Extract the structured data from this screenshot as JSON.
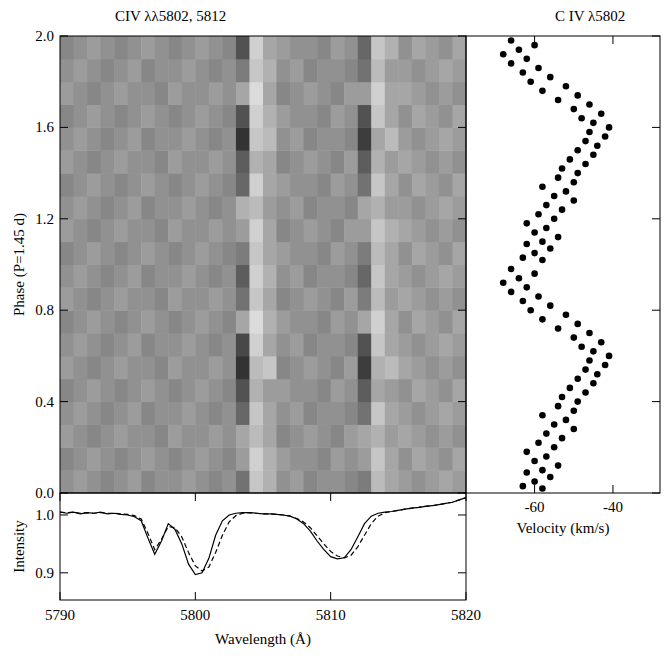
{
  "chart_data": [
    {
      "type": "heatmap",
      "title": "CIV λλ5802, 5812",
      "ylabel": "Phase (P=1.45 d)",
      "xlim": [
        5790,
        5820
      ],
      "ylim": [
        0,
        2
      ],
      "yticks": [
        {
          "value": 0,
          "label": "0.0"
        },
        0.4,
        0.8,
        1.2,
        1.6,
        {
          "value": 2,
          "label": "2.0"
        }
      ],
      "tick_labels": "y",
      "color_range": [
        -1,
        1
      ],
      "x_edges": [
        5790,
        5791,
        5792,
        5793,
        5794,
        5795,
        5796,
        5797,
        5798,
        5799,
        5800,
        5801,
        5802,
        5803,
        5804,
        5805,
        5806,
        5807,
        5808,
        5809,
        5810,
        5811,
        5812,
        5813,
        5814,
        5815,
        5816,
        5817,
        5818,
        5819,
        5820
      ],
      "y_edges": [
        0,
        0.1,
        0.2,
        0.3,
        0.4,
        0.5,
        0.6,
        0.7,
        0.8,
        0.9,
        1.0,
        1.1,
        1.2,
        1.3,
        1.4,
        1.5,
        1.6,
        1.7,
        1.8,
        1.9,
        2.0
      ],
      "cells": [
        [
          0,
          0.1,
          0,
          -0.1,
          0,
          0.1,
          -0.1,
          0,
          0,
          0.1,
          0,
          -0.1,
          0,
          -0.3,
          0.5,
          0.3,
          0,
          0.1,
          -0.1,
          0,
          0,
          -0.1,
          -0.2,
          0.4,
          0.2,
          0.1,
          0,
          0.1,
          0.2,
          0.1
        ],
        [
          -0.1,
          0,
          0.1,
          0,
          -0.1,
          0,
          0.1,
          0,
          -0.1,
          0,
          0.1,
          0,
          -0.1,
          0.1,
          0.6,
          0.3,
          0.1,
          0,
          0,
          -0.1,
          0.1,
          0,
          0.1,
          0.5,
          0.2,
          0,
          0.2,
          0.1,
          0,
          0.2
        ],
        [
          0.1,
          0,
          -0.1,
          0,
          0.1,
          0,
          0,
          -0.1,
          0.1,
          0,
          0,
          0.1,
          0,
          0.2,
          0.4,
          0.2,
          -0.1,
          0,
          0.1,
          0,
          -0.1,
          0.1,
          0.2,
          0.3,
          0.1,
          0.2,
          0.1,
          0,
          0.1,
          0
        ],
        [
          0,
          0.1,
          0,
          -0.1,
          0,
          0.1,
          -0.1,
          0,
          0,
          0.1,
          0,
          -0.1,
          0,
          -0.4,
          0.5,
          0.2,
          0,
          0.1,
          -0.1,
          0,
          0,
          -0.1,
          -0.3,
          0.5,
          0.2,
          0.1,
          0,
          0.1,
          0.2,
          0.1
        ],
        [
          -0.1,
          0,
          0.1,
          0,
          -0.1,
          0,
          0.1,
          0,
          -0.1,
          0,
          0.1,
          0,
          -0.1,
          -0.6,
          0.3,
          0.1,
          0.1,
          0,
          0,
          -0.1,
          0.1,
          0,
          -0.5,
          0.2,
          0.1,
          0,
          0.2,
          0.1,
          0,
          0.2
        ],
        [
          0.1,
          0,
          -0.1,
          0,
          0.1,
          0,
          0,
          -0.1,
          0.1,
          0,
          0,
          0.1,
          0,
          -0.9,
          0.4,
          0.5,
          -0.1,
          0,
          0.1,
          0,
          -0.1,
          0.1,
          -0.8,
          0.3,
          0.4,
          0.2,
          0.1,
          0,
          0.1,
          0
        ],
        [
          0,
          0.1,
          0,
          -0.1,
          0,
          0.1,
          -0.1,
          0,
          0,
          0.1,
          0,
          -0.1,
          0,
          -0.7,
          0.6,
          0.2,
          0,
          0.1,
          -0.1,
          0,
          0,
          -0.1,
          -0.6,
          0.5,
          0.2,
          0.1,
          0,
          0.1,
          0.2,
          0.1
        ],
        [
          -0.1,
          0,
          0.1,
          0,
          -0.1,
          0,
          0.1,
          0,
          -0.1,
          0,
          0.1,
          0,
          -0.1,
          0.2,
          0.7,
          0.3,
          0.1,
          0,
          0,
          -0.1,
          0.1,
          0,
          0.2,
          0.6,
          0.2,
          0,
          0.2,
          0.1,
          0,
          0.2
        ],
        [
          0.1,
          0,
          -0.1,
          0,
          0.1,
          0,
          0,
          -0.1,
          0.1,
          0,
          0,
          0.1,
          0,
          -0.3,
          0.5,
          0.2,
          -0.1,
          0,
          0.1,
          0,
          -0.1,
          0.1,
          -0.2,
          0.4,
          0.1,
          0.2,
          0.1,
          0,
          0.1,
          0
        ],
        [
          0,
          0.1,
          0,
          -0.1,
          0,
          0.1,
          -0.1,
          0,
          0,
          0.1,
          0,
          -0.1,
          0,
          -0.5,
          0.6,
          0.3,
          0,
          0.1,
          -0.1,
          0,
          0,
          -0.1,
          -0.4,
          0.5,
          0.2,
          0.1,
          0,
          0.1,
          0.2,
          0.1
        ],
        [
          -0.1,
          0,
          0.1,
          0,
          -0.1,
          0,
          0.1,
          0,
          -0.1,
          0,
          0.1,
          0,
          -0.1,
          -0.2,
          0.5,
          0.2,
          0.1,
          0,
          0,
          -0.1,
          0.1,
          0,
          -0.2,
          0.4,
          0.2,
          0,
          0.2,
          0.1,
          0,
          0.2
        ],
        [
          0.1,
          0,
          -0.1,
          0,
          0.1,
          0,
          0,
          -0.1,
          0.1,
          0,
          0,
          0.1,
          0,
          0.1,
          0.6,
          0.2,
          -0.1,
          0,
          0.1,
          0,
          -0.1,
          0.1,
          0.1,
          0.5,
          0.3,
          0.2,
          0.1,
          0,
          0.1,
          0
        ],
        [
          0,
          0.1,
          0,
          -0.1,
          0,
          0.1,
          -0.1,
          0,
          0,
          0.1,
          0,
          -0.1,
          0,
          0.3,
          0.4,
          0.1,
          0,
          0.1,
          -0.1,
          0,
          0,
          -0.1,
          0.2,
          0.3,
          0.1,
          0.1,
          0,
          0.1,
          0.2,
          0.1
        ],
        [
          -0.1,
          0,
          0.1,
          0,
          -0.1,
          0,
          0.1,
          0,
          -0.1,
          0,
          0.1,
          0,
          -0.1,
          -0.4,
          0.6,
          0.2,
          0.1,
          0,
          0,
          -0.1,
          0.1,
          0,
          -0.3,
          0.5,
          0.2,
          0,
          0.2,
          0.1,
          0,
          0.2
        ],
        [
          0.1,
          0,
          -0.1,
          0,
          0.1,
          0,
          0,
          -0.1,
          0.1,
          0,
          0,
          0.1,
          0,
          -0.5,
          0.3,
          0.2,
          -0.1,
          0,
          0.1,
          0,
          -0.1,
          0.1,
          -0.5,
          0.3,
          0.1,
          0.2,
          0.1,
          0,
          0.1,
          0
        ],
        [
          0,
          0.1,
          0,
          -0.1,
          0,
          0.1,
          -0.1,
          0,
          0,
          0.1,
          0,
          -0.1,
          0,
          -0.9,
          0.5,
          0.4,
          0,
          0.1,
          -0.1,
          0,
          0,
          -0.1,
          -0.8,
          0.2,
          0.4,
          0.1,
          0,
          0.1,
          0.2,
          0.1
        ],
        [
          -0.1,
          0,
          0.1,
          0,
          -0.1,
          0,
          0.1,
          0,
          -0.1,
          0,
          0.1,
          0,
          -0.1,
          -0.6,
          0.6,
          0.3,
          0.1,
          0,
          0,
          -0.1,
          0.1,
          0,
          -0.6,
          0.5,
          0.2,
          0,
          0.2,
          0.1,
          0,
          0.2
        ],
        [
          0.1,
          0,
          -0.1,
          0,
          0.1,
          0,
          0,
          -0.1,
          0.1,
          0,
          0,
          0.1,
          0,
          0.2,
          0.7,
          0.2,
          -0.1,
          0,
          0.1,
          0,
          -0.1,
          0.1,
          0.1,
          0.6,
          0.2,
          0.2,
          0.1,
          0,
          0.1,
          0
        ],
        [
          0,
          0.1,
          0,
          -0.1,
          0,
          0.1,
          -0.1,
          0,
          0,
          0.1,
          0,
          -0.1,
          0,
          -0.2,
          0.5,
          0.3,
          0,
          0.1,
          -0.1,
          0,
          0,
          -0.1,
          -0.3,
          0.4,
          0.1,
          0.1,
          0,
          0.1,
          0.2,
          0.1
        ],
        [
          -0.1,
          0,
          0.1,
          0,
          -0.1,
          0,
          0.1,
          0,
          -0.1,
          0,
          0.1,
          0,
          -0.1,
          -0.6,
          0.6,
          0.2,
          0.1,
          0,
          0,
          -0.1,
          0.1,
          0,
          -0.4,
          0.5,
          0.3,
          0,
          0.2,
          0.1,
          0,
          0.2
        ]
      ]
    },
    {
      "type": "scatter",
      "title": "C IV λ5802",
      "xlabel": "Velocity (km/s)",
      "xlim": [
        -77.5,
        -28
      ],
      "xticks": [
        -60,
        -40
      ],
      "ylim": [
        0,
        2
      ],
      "yticks": [
        {
          "value": 0,
          "label": "0.0"
        },
        0.4,
        0.8,
        1.2,
        1.6,
        {
          "value": 2,
          "label": "2.0"
        }
      ],
      "tick_labels": "x",
      "marker": "circle",
      "color": "#000000",
      "x": [
        -58,
        -63,
        -60,
        -56,
        -62,
        -58,
        -54,
        -60,
        -57,
        -62,
        -55,
        -59,
        -53,
        -57,
        -50,
        -55,
        -52,
        -58,
        -50,
        -54,
        -49,
        -53,
        -47,
        -51,
        -45,
        -49,
        -44,
        -47,
        -42,
        -46,
        -41,
        -45,
        -48,
        -43,
        -50,
        -46,
        -54,
        -49,
        -58,
        -52,
        -61,
        -56,
        -63,
        -59,
        -66,
        -62,
        -68,
        -64,
        -60,
        -66,
        -58,
        -63,
        -60,
        -56,
        -62,
        -58,
        -54,
        -60,
        -57,
        -62,
        -55,
        -59,
        -53,
        -57,
        -50,
        -55,
        -52,
        -58,
        -50,
        -54,
        -49,
        -53,
        -47,
        -51,
        -45,
        -49,
        -44,
        -47,
        -42,
        -46,
        -41,
        -45,
        -48,
        -43,
        -50,
        -46,
        -54,
        -49,
        -58,
        -52,
        -61,
        -56,
        -63,
        -59,
        -66,
        -62,
        -68,
        -64,
        -60,
        -66
      ],
      "values": [
        0.02,
        0.03,
        0.05,
        0.07,
        0.09,
        0.1,
        0.12,
        0.14,
        0.16,
        0.18,
        0.2,
        0.22,
        0.24,
        0.26,
        0.28,
        0.3,
        0.32,
        0.34,
        0.36,
        0.38,
        0.4,
        0.42,
        0.44,
        0.46,
        0.48,
        0.5,
        0.52,
        0.54,
        0.56,
        0.58,
        0.6,
        0.62,
        0.64,
        0.66,
        0.68,
        0.7,
        0.72,
        0.74,
        0.76,
        0.78,
        0.8,
        0.82,
        0.84,
        0.86,
        0.88,
        0.9,
        0.92,
        0.94,
        0.96,
        0.98,
        1.02,
        1.03,
        1.05,
        1.07,
        1.09,
        1.1,
        1.12,
        1.14,
        1.16,
        1.18,
        1.2,
        1.22,
        1.24,
        1.26,
        1.28,
        1.3,
        1.32,
        1.34,
        1.36,
        1.38,
        1.4,
        1.42,
        1.44,
        1.46,
        1.48,
        1.5,
        1.52,
        1.54,
        1.56,
        1.58,
        1.6,
        1.62,
        1.64,
        1.66,
        1.68,
        1.7,
        1.72,
        1.74,
        1.76,
        1.78,
        1.8,
        1.82,
        1.84,
        1.86,
        1.88,
        1.9,
        1.92,
        1.94,
        1.96,
        1.98
      ]
    },
    {
      "type": "line",
      "xlabel": "Wavelength (Å)",
      "ylabel": "Intensity",
      "xlim": [
        5790,
        5820
      ],
      "xticks": [
        5790,
        5800,
        5810,
        5820
      ],
      "ylim": [
        0.853,
        1.038
      ],
      "yticks": [
        0.9,
        {
          "value": 1,
          "label": "1.0"
        }
      ],
      "x": [
        5790,
        5790.5,
        5791,
        5791.5,
        5792,
        5792.5,
        5793,
        5793.5,
        5794,
        5794.5,
        5795,
        5795.5,
        5796,
        5796.5,
        5797,
        5797.5,
        5798,
        5798.5,
        5799,
        5799.5,
        5800,
        5800.5,
        5801,
        5801.5,
        5802,
        5802.5,
        5803,
        5803.5,
        5804,
        5804.5,
        5805,
        5805.5,
        5806,
        5806.5,
        5807,
        5807.5,
        5808,
        5808.5,
        5809,
        5809.5,
        5810,
        5810.5,
        5811,
        5811.5,
        5812,
        5812.5,
        5813,
        5813.5,
        5814,
        5814.5,
        5815,
        5815.5,
        5816,
        5816.5,
        5817,
        5817.5,
        5818,
        5818.5,
        5819,
        5819.5,
        5820
      ],
      "series": [
        {
          "color": "#000000",
          "line_style": "solid",
          "values": [
            1.005,
            1.003,
            1.005,
            1.002,
            1.004,
            1.003,
            1.005,
            1.002,
            1.003,
            1.001,
            1.0,
            0.997,
            0.99,
            0.96,
            0.932,
            0.955,
            0.985,
            0.975,
            0.95,
            0.915,
            0.897,
            0.9,
            0.925,
            0.965,
            0.99,
            1.0,
            1.003,
            1.004,
            1.004,
            1.003,
            1.002,
            1.002,
            1.001,
            1.0,
            0.998,
            0.993,
            0.985,
            0.972,
            0.955,
            0.94,
            0.928,
            0.924,
            0.926,
            0.94,
            0.962,
            0.985,
            0.998,
            1.003,
            1.005,
            1.006,
            1.008,
            1.01,
            1.012,
            1.013,
            1.015,
            1.016,
            1.018,
            1.02,
            1.022,
            1.026,
            1.03
          ]
        },
        {
          "color": "#000000",
          "line_style": "dashed",
          "values": [
            1.005,
            1.004,
            1.005,
            1.003,
            1.004,
            1.003,
            1.004,
            1.003,
            1.003,
            1.002,
            1.001,
            0.999,
            0.993,
            0.968,
            0.94,
            0.958,
            0.98,
            0.978,
            0.962,
            0.935,
            0.912,
            0.903,
            0.91,
            0.935,
            0.965,
            0.988,
            0.999,
            1.003,
            1.004,
            1.003,
            1.002,
            1.002,
            1.001,
            1.0,
            0.998,
            0.994,
            0.988,
            0.978,
            0.964,
            0.95,
            0.937,
            0.929,
            0.926,
            0.93,
            0.945,
            0.965,
            0.985,
            0.998,
            1.004,
            1.006,
            1.008,
            1.01,
            1.012,
            1.013,
            1.015,
            1.016,
            1.018,
            1.02,
            1.022,
            1.026,
            1.03
          ]
        }
      ]
    }
  ]
}
